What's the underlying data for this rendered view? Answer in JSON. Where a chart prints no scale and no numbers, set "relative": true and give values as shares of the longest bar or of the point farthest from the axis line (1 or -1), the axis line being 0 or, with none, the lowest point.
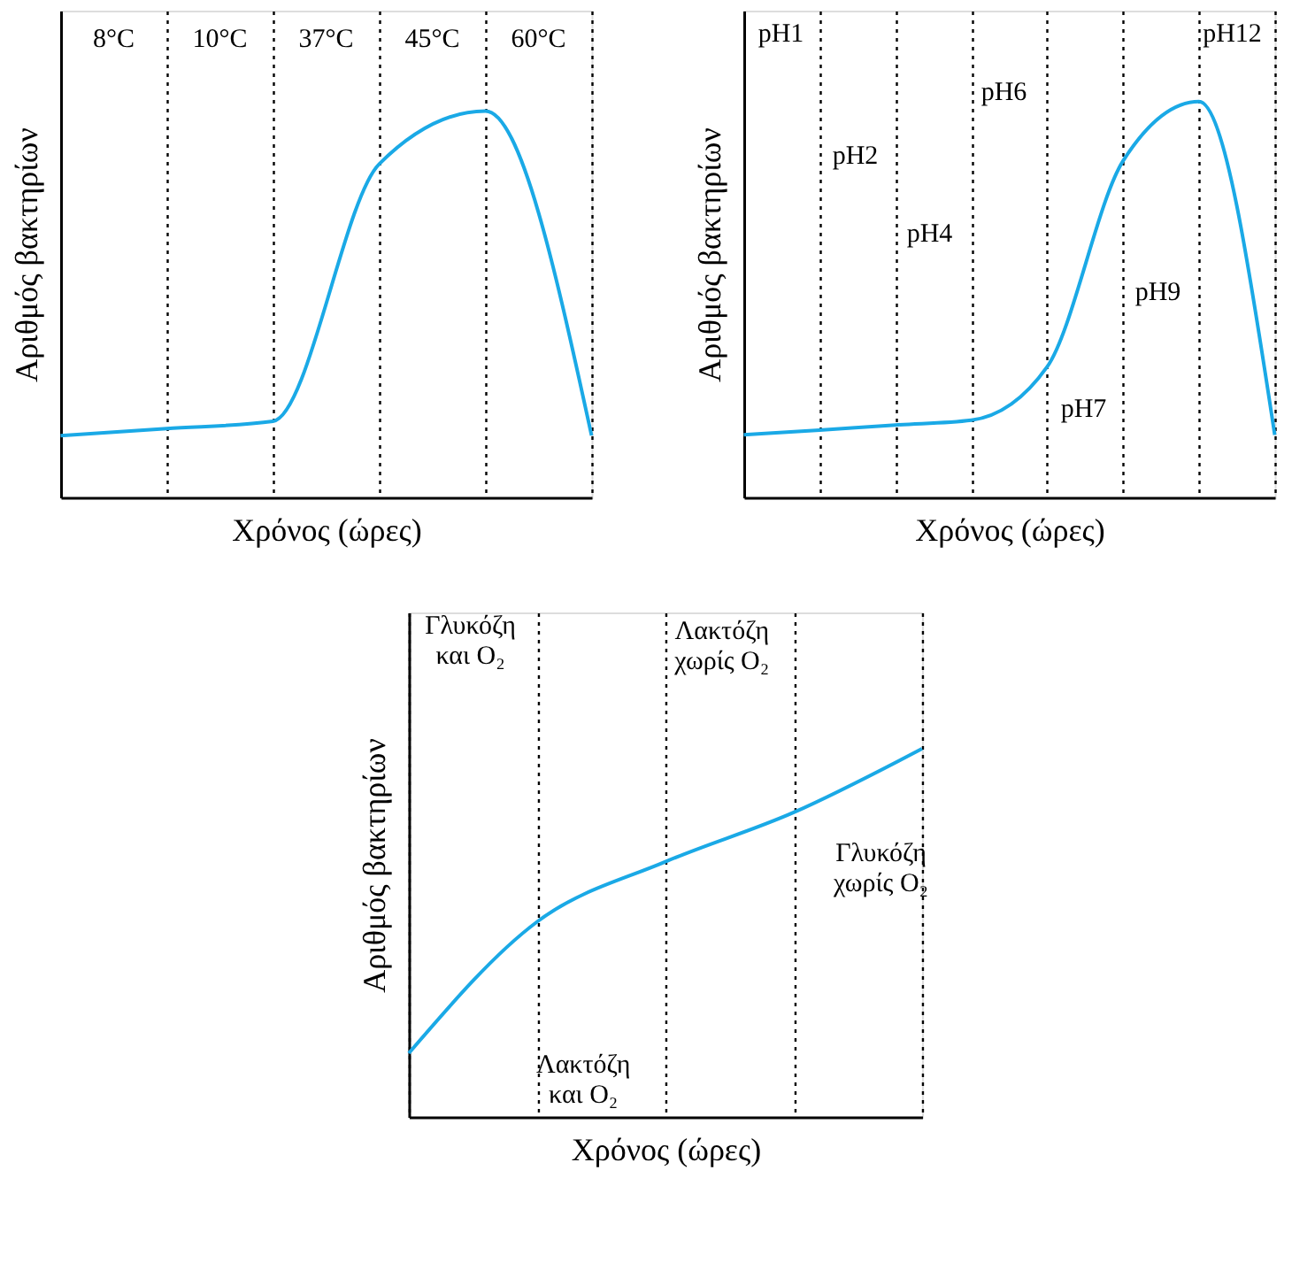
{
  "chart_data": [
    {
      "type": "line",
      "relative": true,
      "xlabel": "Χρόνος (ώρες)",
      "ylabel": "Αριθμός βακτηρίων",
      "tick_labels": false,
      "grid": "x",
      "categories": [
        null,
        null,
        null,
        null,
        null,
        null
      ],
      "series": [
        {
          "color": "#1aa9e6",
          "values": [
            0.16,
            0.178,
            0.197,
            0.863,
            1,
            0.16
          ]
        }
      ],
      "annotations": [
        "8°C",
        "10°C",
        "37°C",
        "45°C",
        "60°C"
      ]
    },
    {
      "type": "line",
      "relative": true,
      "xlabel": "Χρόνος (ώρες)",
      "ylabel": "Αριθμός βακτηρίων",
      "tick_labels": false,
      "grid": "x",
      "categories": [
        null,
        null,
        null,
        null,
        null,
        null,
        null,
        null
      ],
      "series": [
        {
          "color": "#1aa9e6",
          "values": [
            0.158,
            0.17,
            0.183,
            0.195,
            0.33,
            0.85,
            1,
            0.158
          ]
        }
      ],
      "annotations": [
        "pH1",
        "pH2",
        "pH4",
        "pH6",
        "pH7",
        "pH9",
        "pH12"
      ]
    },
    {
      "type": "line",
      "relative": true,
      "xlabel": "Χρόνος (ώρες)",
      "ylabel": "Αριθμός βακτηρίων",
      "tick_labels": false,
      "grid": "x",
      "categories": [
        null,
        null,
        null,
        null,
        null
      ],
      "series": [
        {
          "color": "#1aa9e6",
          "values": [
            0.173,
            0.53,
            0.693,
            0.827,
            1
          ]
        }
      ],
      "annotations": [
        "Γλυκόζη\nκαι O₂",
        "Λακτόζη\nχωρίς O₂",
        "Γλυκόζη\nχωρίς O₂",
        "Λακτόζη\nκαι O₂"
      ]
    }
  ]
}
